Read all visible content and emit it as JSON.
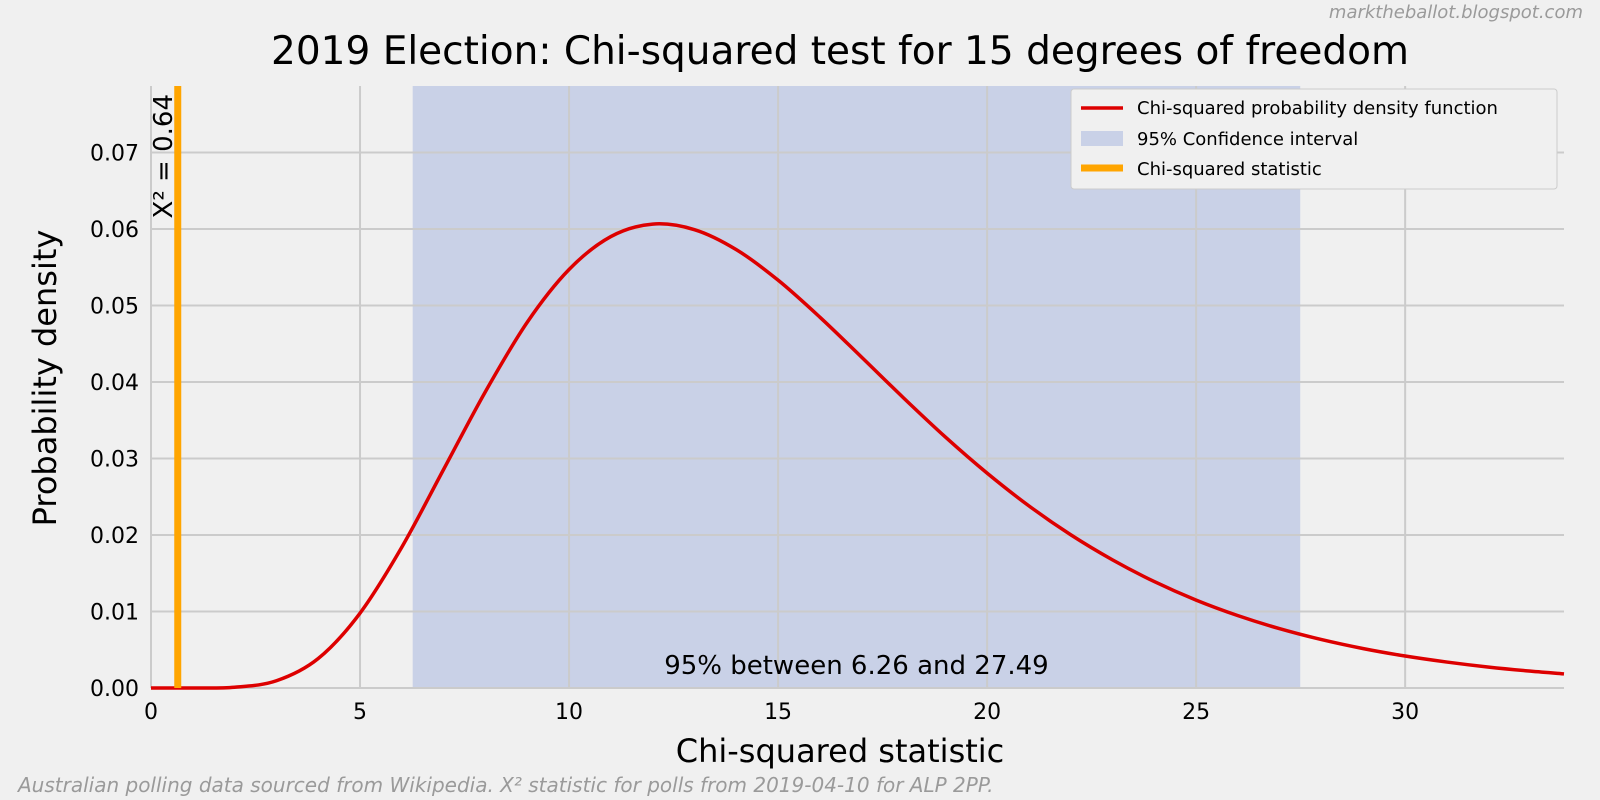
{
  "watermark": "marktheballot.blogspot.com",
  "footnote": "Australian polling data sourced from Wikipedia. X² statistic for polls from 2019-04-10 for ALP 2PP.",
  "chart_data": {
    "type": "line",
    "title": "2019 Election: Chi-squared test for 15 degrees of freedom",
    "xlabel": "Chi-squared statistic",
    "ylabel": "Probability density",
    "xlim": [
      0,
      33.8
    ],
    "ylim": [
      0,
      0.0787
    ],
    "x_ticks": [
      0,
      5,
      10,
      15,
      20,
      25,
      30
    ],
    "y_ticks": [
      0.0,
      0.01,
      0.02,
      0.03,
      0.04,
      0.05,
      0.06,
      0.07
    ],
    "grid": true,
    "legend_position": "top-right",
    "degrees_of_freedom": 15,
    "series": [
      {
        "name": "Chi-squared probability density function",
        "color": "#dd0000",
        "x": [
          0,
          1,
          2,
          3,
          4,
          5,
          6,
          7,
          8,
          9,
          10,
          11,
          12,
          13,
          14,
          15,
          16,
          17,
          18,
          19,
          20,
          21,
          22,
          23,
          24,
          25,
          26,
          27,
          28,
          29,
          30,
          31,
          32,
          33,
          33.8
        ],
        "y": [
          0.0,
          1e-06,
          0.000102,
          0.000944,
          0.003851,
          0.009785,
          0.01842,
          0.02858,
          0.03875,
          0.04782,
          0.05471,
          0.05902,
          0.06065,
          0.05992,
          0.05731,
          0.05332,
          0.04848,
          0.04324,
          0.03793,
          0.03282,
          0.02809,
          0.02381,
          0.02003,
          0.01675,
          0.01391,
          0.01149,
          0.00946,
          0.00775,
          0.00633,
          0.00515,
          0.00418,
          0.00339,
          0.00273,
          0.0022,
          0.00185
        ]
      }
    ],
    "confidence_interval": {
      "name": "95% Confidence interval",
      "lower": 6.26,
      "upper": 27.49,
      "color": "#aab8e0",
      "label": "95% between 6.26 and 27.49"
    },
    "statistic": {
      "name": "Chi-squared statistic",
      "value": 0.64,
      "color": "#ffa500",
      "label": "X² = 0.64"
    }
  }
}
